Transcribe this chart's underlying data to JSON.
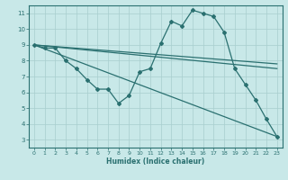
{
  "xlabel": "Humidex (Indice chaleur)",
  "ylabel": "",
  "background_color": "#c8e8e8",
  "grid_color": "#a8cece",
  "line_color": "#2a7070",
  "xlim": [
    -0.5,
    23.5
  ],
  "ylim": [
    2.5,
    11.5
  ],
  "xticks": [
    0,
    1,
    2,
    3,
    4,
    5,
    6,
    7,
    8,
    9,
    10,
    11,
    12,
    13,
    14,
    15,
    16,
    17,
    18,
    19,
    20,
    21,
    22,
    23
  ],
  "yticks": [
    3,
    4,
    5,
    6,
    7,
    8,
    9,
    10,
    11
  ],
  "series_main": {
    "x": [
      0,
      1,
      2,
      3,
      4,
      5,
      6,
      7,
      8,
      9,
      10,
      11,
      12,
      13,
      14,
      15,
      16,
      17,
      18,
      19,
      20,
      21,
      22,
      23
    ],
    "y": [
      9.0,
      8.8,
      8.8,
      8.0,
      7.5,
      6.8,
      6.2,
      6.2,
      5.3,
      5.8,
      7.3,
      7.5,
      9.1,
      10.5,
      10.2,
      11.2,
      11.0,
      10.8,
      9.8,
      7.5,
      6.5,
      5.5,
      4.3,
      3.2
    ]
  },
  "series_lines": [
    {
      "x": [
        0,
        23
      ],
      "y": [
        9.0,
        3.2
      ]
    },
    {
      "x": [
        0,
        23
      ],
      "y": [
        9.0,
        7.5
      ]
    },
    {
      "x": [
        0,
        23
      ],
      "y": [
        9.0,
        7.8
      ]
    }
  ]
}
